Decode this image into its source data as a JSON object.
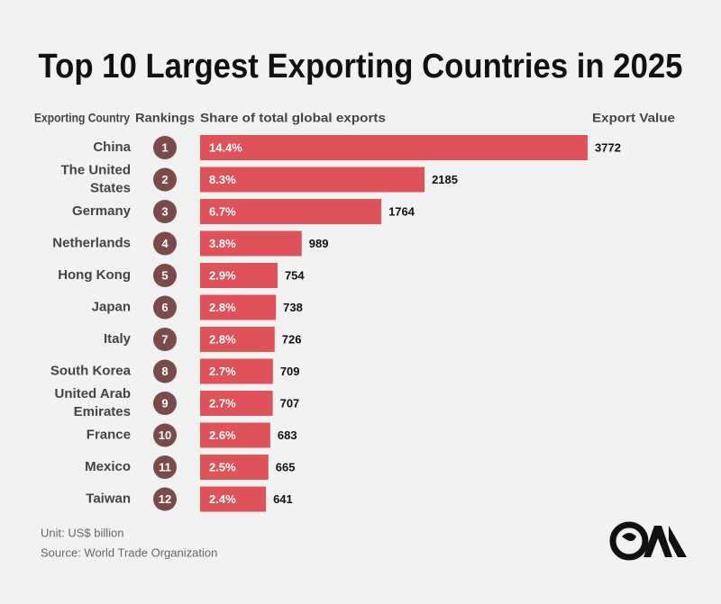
{
  "chart_data": {
    "type": "bar",
    "title": "Top 10 Largest Exporting Countries in 2025",
    "headers": [
      "Exporting Country",
      "Rankings",
      "Share of total global exports",
      "Export Value"
    ],
    "categories": [
      "China",
      "The United States",
      "Germany",
      "Netherlands",
      "Hong Kong",
      "Japan",
      "Italy",
      "South Korea",
      "United Arab Emirates",
      "France",
      "Mexico",
      "Taiwan"
    ],
    "rankings": [
      1,
      2,
      3,
      4,
      5,
      6,
      7,
      8,
      9,
      10,
      11,
      12
    ],
    "share_labels": [
      "14.4%",
      "8.3%",
      "6.7%",
      "3.8%",
      "2.9%",
      "2.8%",
      "2.8%",
      "2.7%",
      "2.7%",
      "2.6%",
      "2.5%",
      "2.4%"
    ],
    "values": [
      3772,
      2185,
      1764,
      989,
      754,
      738,
      726,
      709,
      707,
      683,
      665,
      641
    ],
    "color": "#e0525a",
    "rank_color": "#7b4b4b",
    "unit": "Unit: US$ billion",
    "source": "Source: World Trade Organization"
  }
}
